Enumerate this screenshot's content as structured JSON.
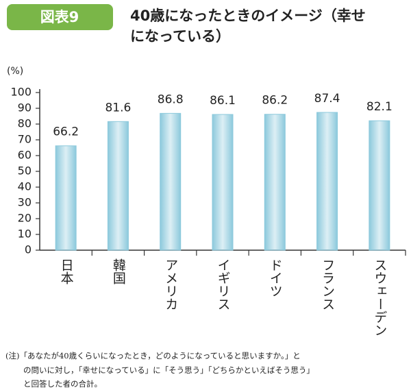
{
  "badge": "図表9",
  "chart_data": {
    "type": "bar",
    "title": [
      "40歳になったときのイメージ（幸せ",
      "になっている）"
    ],
    "y_label": "(%)",
    "categories": [
      "日本",
      "韓国",
      "アメリカ",
      "イギリス",
      "ドイツ",
      "フランス",
      "スウェーデン"
    ],
    "values": [
      66.2,
      81.6,
      86.8,
      86.1,
      86.2,
      87.4,
      82.1
    ],
    "color": "#8cc9dc",
    "ylim": [
      0,
      100
    ],
    "yticks": [
      0,
      10,
      20,
      30,
      40,
      50,
      60,
      70,
      80,
      90,
      100
    ],
    "grid": false
  },
  "note": [
    "(注)「あなたが40歳くらいになったとき，どのようになっていると思いますか。」と",
    "の問いに対し，「幸せになっている」に「そう思う」「どちらかといえばそう思う」",
    "と回答した者の合計。"
  ]
}
